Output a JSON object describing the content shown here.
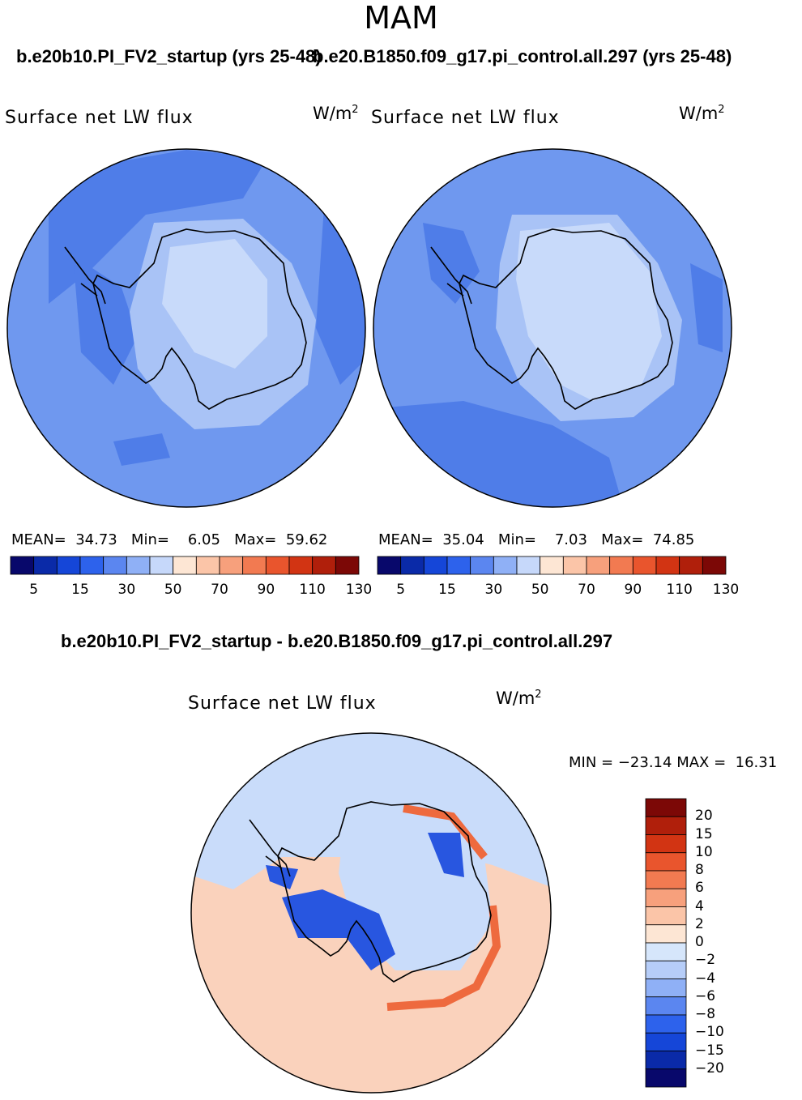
{
  "season": "MAM",
  "panels": [
    {
      "case_title": "b.e20b10.PI_FV2_startup (yrs 25-48)",
      "variable": "Surface net LW flux",
      "units": "W/m",
      "units_sup": "2",
      "stats": {
        "mean_label": "MEAN=",
        "mean": "34.73",
        "min_label": "Min=",
        "min": "6.05",
        "max_label": "Max=",
        "max": "59.62"
      }
    },
    {
      "case_title": "b.e20.B1850.f09_g17.pi_control.all.297 (yrs 25-48)",
      "variable": "Surface net LW flux",
      "units": "W/m",
      "units_sup": "2",
      "stats": {
        "mean_label": "MEAN=",
        "mean": "35.04",
        "min_label": "Min=",
        "min": "7.03",
        "max_label": "Max=",
        "max": "74.85"
      }
    }
  ],
  "colorbar": {
    "colors": [
      "#08086b",
      "#0a2aa8",
      "#1546d8",
      "#2d62ec",
      "#5b86f0",
      "#8fb0f6",
      "#c6d8fa",
      "#fde6d4",
      "#fbc5a8",
      "#f7a07c",
      "#f27a51",
      "#e9552d",
      "#d23413",
      "#b01f0b",
      "#7c0806"
    ],
    "tick_labels": [
      "5",
      "15",
      "30",
      "50",
      "70",
      "90",
      "110",
      "130"
    ]
  },
  "diff": {
    "title": "b.e20b10.PI_FV2_startup - b.e20.B1850.f09_g17.pi_control.all.297",
    "variable": "Surface net LW flux",
    "units": "W/m",
    "units_sup": "2",
    "minmax": {
      "min_label": "MIN =",
      "min": "−23.14",
      "max_label": "MAX =",
      "max": "16.31"
    },
    "colorbar": {
      "colors": [
        "#7c0806",
        "#b01f0b",
        "#d23413",
        "#e9552d",
        "#f27a51",
        "#f7a07c",
        "#fbc5a8",
        "#fde6d4",
        "#d6e6fb",
        "#b6cdf8",
        "#8fb0f6",
        "#5b86f0",
        "#2d62ec",
        "#1546d8",
        "#0a2aa8",
        "#08086b"
      ],
      "tick_labels": [
        "20",
        "15",
        "10",
        "8",
        "6",
        "4",
        "2",
        "0",
        "−2",
        "−4",
        "−6",
        "−8",
        "−10",
        "−15",
        "−20"
      ]
    }
  },
  "map_colors": {
    "ocean": "#6f98ef",
    "ocean_dark": "#4f7de8",
    "ice_light": "#a9c3f6",
    "ice_pale": "#c8dafa",
    "diff_pos": "#fad2bc",
    "diff_neg": "#c9dcfa",
    "diff_red": "#ee6a3e",
    "diff_blue": "#2856e0"
  }
}
